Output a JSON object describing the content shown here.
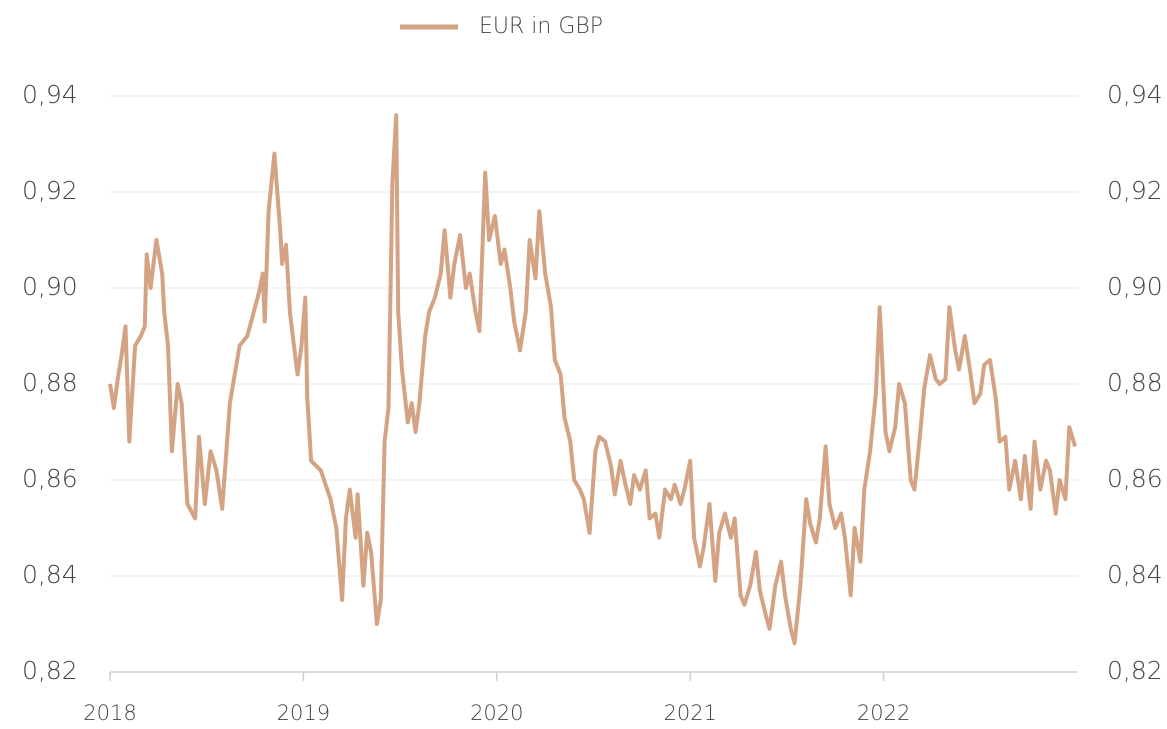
{
  "chart_data": {
    "type": "line",
    "legend": "top",
    "grid": true,
    "xlim": [
      2018,
      2023
    ],
    "xticks": [
      2018,
      2019,
      2020,
      2021,
      2022
    ],
    "ylim": [
      0.82,
      0.94
    ],
    "yticks": [
      {
        "value": 0.82,
        "label": "0,82"
      },
      {
        "value": 0.84,
        "label": "0,84"
      },
      {
        "value": 0.86,
        "label": "0,86"
      },
      {
        "value": 0.88,
        "label": "0,88"
      },
      {
        "value": 0.9,
        "label": "0,90"
      },
      {
        "value": 0.92,
        "label": "0,92"
      },
      {
        "value": 0.94,
        "label": "0,94"
      }
    ],
    "x": [
      2018.0,
      2018.02,
      2018.04,
      2018.06,
      2018.08,
      2018.1,
      2018.13,
      2018.16,
      2018.18,
      2018.19,
      2018.21,
      2018.24,
      2018.27,
      2018.28,
      2018.3,
      2018.32,
      2018.35,
      2018.37,
      2018.4,
      2018.44,
      2018.46,
      2018.49,
      2018.52,
      2018.55,
      2018.58,
      2018.62,
      2018.67,
      2018.71,
      2018.77,
      2018.79,
      2018.8,
      2018.82,
      2018.85,
      2018.88,
      2018.89,
      2018.91,
      2018.93,
      2018.96,
      2018.97,
      2018.99,
      2019.01,
      2019.02,
      2019.04,
      2019.09,
      2019.14,
      2019.17,
      2019.2,
      2019.22,
      2019.24,
      2019.27,
      2019.28,
      2019.31,
      2019.33,
      2019.35,
      2019.38,
      2019.4,
      2019.42,
      2019.44,
      2019.46,
      2019.48,
      2019.49,
      2019.51,
      2019.54,
      2019.56,
      2019.58,
      2019.6,
      2019.63,
      2019.65,
      2019.68,
      2019.71,
      2019.73,
      2019.76,
      2019.78,
      2019.81,
      2019.84,
      2019.86,
      2019.89,
      2019.91,
      2019.94,
      2019.96,
      2019.99,
      2020.02,
      2020.04,
      2020.07,
      2020.09,
      2020.12,
      2020.15,
      2020.17,
      2020.2,
      2020.22,
      2020.25,
      2020.28,
      2020.3,
      2020.33,
      2020.35,
      2020.38,
      2020.4,
      2020.43,
      2020.45,
      2020.48,
      2020.51,
      2020.53,
      2020.56,
      2020.59,
      2020.61,
      2020.64,
      2020.66,
      2020.69,
      2020.71,
      2020.74,
      2020.77,
      2020.79,
      2020.82,
      2020.84,
      2020.87,
      2020.9,
      2020.92,
      2020.95,
      2020.97,
      2021.0,
      2021.02,
      2021.05,
      2021.07,
      2021.1,
      2021.13,
      2021.15,
      2021.18,
      2021.21,
      2021.23,
      2021.26,
      2021.28,
      2021.31,
      2021.34,
      2021.36,
      2021.39,
      2021.41,
      2021.44,
      2021.47,
      2021.49,
      2021.52,
      2021.54,
      2021.57,
      2021.6,
      2021.62,
      2021.65,
      2021.67,
      2021.7,
      2021.72,
      2021.75,
      2021.78,
      2021.8,
      2021.83,
      2021.85,
      2021.88,
      2021.9,
      2021.93,
      2021.96,
      2021.98,
      2022.01,
      2022.03,
      2022.06,
      2022.08,
      2022.11,
      2022.14,
      2022.16,
      2022.19,
      2022.21,
      2022.24,
      2022.27,
      2022.29,
      2022.32,
      2022.34,
      2022.37,
      2022.39,
      2022.42,
      2022.45,
      2022.47,
      2022.5,
      2022.52,
      2022.55,
      2022.58,
      2022.6,
      2022.63,
      2022.65,
      2022.68,
      2022.71,
      2022.73,
      2022.76,
      2022.78,
      2022.81,
      2022.84,
      2022.86,
      2022.89,
      2022.91,
      2022.94,
      2022.96,
      2022.99
    ],
    "series": [
      {
        "name": "EUR in GBP",
        "color": "#d3a384",
        "values": [
          0.88,
          0.875,
          0.881,
          0.886,
          0.892,
          0.868,
          0.888,
          0.89,
          0.892,
          0.907,
          0.9,
          0.91,
          0.903,
          0.895,
          0.888,
          0.866,
          0.88,
          0.876,
          0.855,
          0.852,
          0.869,
          0.855,
          0.866,
          0.862,
          0.854,
          0.876,
          0.888,
          0.89,
          0.899,
          0.903,
          0.893,
          0.916,
          0.928,
          0.912,
          0.905,
          0.909,
          0.895,
          0.885,
          0.882,
          0.888,
          0.898,
          0.877,
          0.864,
          0.862,
          0.856,
          0.85,
          0.835,
          0.852,
          0.858,
          0.848,
          0.857,
          0.838,
          0.849,
          0.845,
          0.83,
          0.835,
          0.868,
          0.875,
          0.922,
          0.936,
          0.895,
          0.883,
          0.872,
          0.876,
          0.87,
          0.876,
          0.89,
          0.895,
          0.898,
          0.903,
          0.912,
          0.898,
          0.905,
          0.911,
          0.9,
          0.903,
          0.895,
          0.891,
          0.924,
          0.91,
          0.915,
          0.905,
          0.908,
          0.9,
          0.893,
          0.887,
          0.895,
          0.91,
          0.902,
          0.916,
          0.903,
          0.896,
          0.885,
          0.882,
          0.873,
          0.868,
          0.86,
          0.858,
          0.856,
          0.849,
          0.866,
          0.869,
          0.868,
          0.863,
          0.857,
          0.864,
          0.86,
          0.855,
          0.861,
          0.858,
          0.862,
          0.852,
          0.853,
          0.848,
          0.858,
          0.856,
          0.859,
          0.855,
          0.858,
          0.864,
          0.848,
          0.842,
          0.846,
          0.855,
          0.839,
          0.849,
          0.853,
          0.848,
          0.852,
          0.836,
          0.834,
          0.838,
          0.845,
          0.837,
          0.832,
          0.829,
          0.838,
          0.843,
          0.836,
          0.829,
          0.826,
          0.838,
          0.856,
          0.851,
          0.847,
          0.852,
          0.867,
          0.855,
          0.85,
          0.853,
          0.848,
          0.836,
          0.85,
          0.843,
          0.858,
          0.866,
          0.878,
          0.896,
          0.87,
          0.866,
          0.871,
          0.88,
          0.876,
          0.86,
          0.858,
          0.87,
          0.879,
          0.886,
          0.881,
          0.88,
          0.881,
          0.896,
          0.887,
          0.883,
          0.89,
          0.882,
          0.876,
          0.878,
          0.884,
          0.885,
          0.877,
          0.868,
          0.869,
          0.858,
          0.864,
          0.856,
          0.865,
          0.854,
          0.868,
          0.858,
          0.864,
          0.862,
          0.853,
          0.86,
          0.856,
          0.871,
          0.867
        ]
      }
    ]
  }
}
